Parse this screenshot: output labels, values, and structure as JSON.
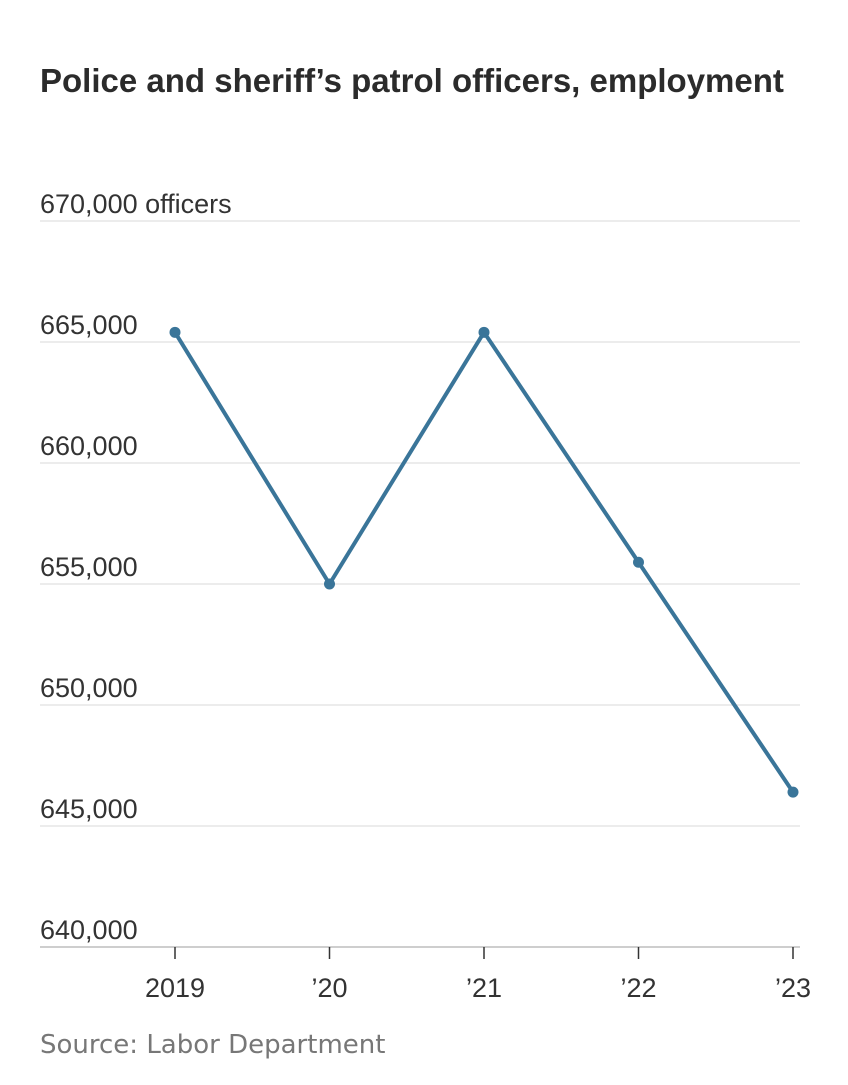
{
  "chart_data": {
    "type": "line",
    "title": "Police and sheriff’s patrol officers, employment",
    "ylabel_unit": "officers",
    "categories": [
      "2019",
      "’20",
      "’21",
      "’22",
      "’23"
    ],
    "series": [
      {
        "values": [
          665400,
          655000,
          665400,
          655900,
          646400
        ]
      }
    ],
    "yticks": [
      670000,
      665000,
      660000,
      655000,
      650000,
      645000,
      640000
    ],
    "ytick_labels": [
      "670,000",
      "665,000",
      "660,000",
      "655,000",
      "650,000",
      "645,000",
      "640,000"
    ],
    "ylim": [
      640000,
      670000
    ],
    "grid": true,
    "line_color": "#3a7599",
    "grid_color": "#d9d9d9",
    "source": "Source: Labor Department"
  }
}
